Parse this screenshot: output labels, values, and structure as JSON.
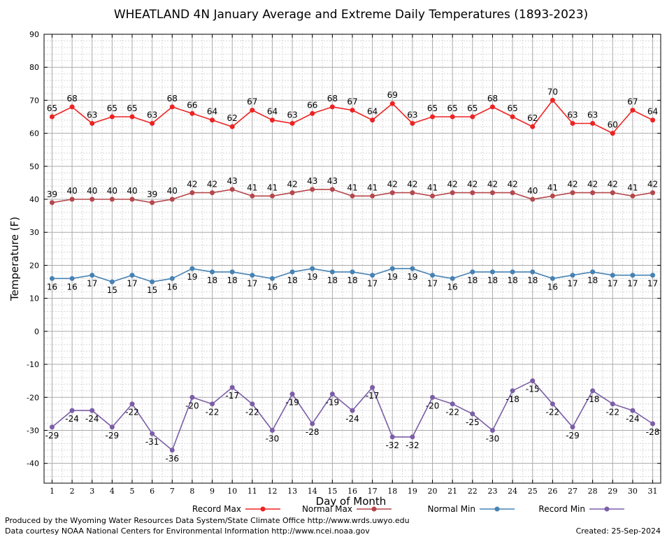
{
  "footer": {
    "credit_line1": "Produced by the Wyoming Water Resources Data System/State Climate Office http://www.wrds.uwyo.edu",
    "credit_line2": "Data courtesy NOAA National Centers for Environmental Information http://www.ncei.noaa.gov",
    "created": "Created:  25-Sep-2024"
  },
  "chart_data": {
    "type": "line",
    "title": "WHEATLAND 4N January Average and Extreme Daily Temperatures (1893-2023)",
    "xlabel": "Day of Month",
    "ylabel": "Temperature (F)",
    "xlim": [
      0.6,
      31.4
    ],
    "ylim": [
      -46,
      90
    ],
    "y_ticks": [
      -40,
      -30,
      -20,
      -10,
      0,
      10,
      20,
      30,
      40,
      50,
      60,
      70,
      80,
      90
    ],
    "grid": true,
    "legend_position": "bottom",
    "x": [
      1,
      2,
      3,
      4,
      5,
      6,
      7,
      8,
      9,
      10,
      11,
      12,
      13,
      14,
      15,
      16,
      17,
      18,
      19,
      20,
      21,
      22,
      23,
      24,
      25,
      26,
      27,
      28,
      29,
      30,
      31
    ],
    "series": [
      {
        "name": "Record Max",
        "color": "#ee2222",
        "label_position": "above",
        "values": [
          65,
          68,
          63,
          65,
          65,
          63,
          68,
          66,
          64,
          62,
          67,
          64,
          63,
          66,
          68,
          67,
          64,
          69,
          63,
          65,
          65,
          65,
          68,
          65,
          62,
          70,
          63,
          63,
          60,
          67,
          64
        ]
      },
      {
        "name": "Normal Max",
        "color": "#b5484c",
        "label_position": "above",
        "values": [
          39,
          40,
          40,
          40,
          40,
          39,
          40,
          42,
          42,
          43,
          41,
          41,
          42,
          43,
          43,
          41,
          41,
          42,
          42,
          41,
          42,
          42,
          42,
          42,
          40,
          41,
          42,
          42,
          42,
          41,
          42
        ]
      },
      {
        "name": "Normal Min",
        "color": "#4682b4",
        "label_position": "below",
        "values": [
          16,
          16,
          17,
          15,
          17,
          15,
          16,
          19,
          18,
          18,
          17,
          16,
          18,
          19,
          18,
          18,
          17,
          19,
          19,
          17,
          16,
          18,
          18,
          18,
          18,
          16,
          17,
          18,
          17,
          17,
          17
        ]
      },
      {
        "name": "Record Min",
        "color": "#7b5ea7",
        "label_position": "below",
        "values": [
          -29,
          -24,
          -24,
          -29,
          -22,
          -31,
          -36,
          -20,
          -22,
          -17,
          -22,
          -30,
          -19,
          -28,
          -19,
          -24,
          -17,
          -32,
          -32,
          -20,
          -22,
          -25,
          -30,
          -18,
          -15,
          -22,
          -29,
          -18,
          -22,
          -24,
          -28
        ]
      }
    ]
  }
}
